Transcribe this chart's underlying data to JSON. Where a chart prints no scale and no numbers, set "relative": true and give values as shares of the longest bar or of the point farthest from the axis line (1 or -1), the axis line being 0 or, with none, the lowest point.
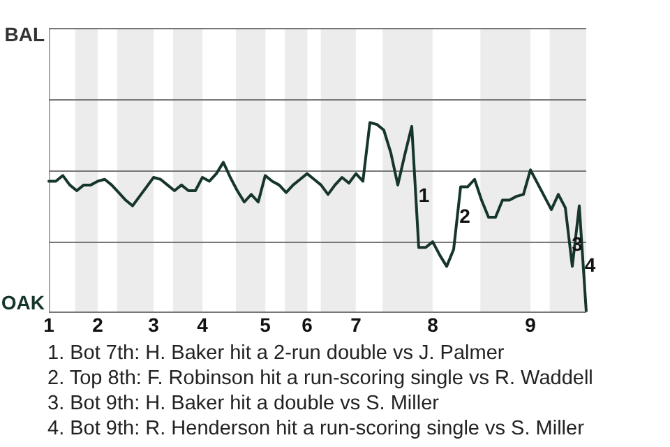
{
  "chart_data": {
    "type": "line",
    "relative": true,
    "categories": [
      "1",
      null,
      null,
      null,
      null,
      null,
      null,
      "2",
      null,
      null,
      null,
      null,
      null,
      null,
      null,
      "3",
      null,
      null,
      null,
      null,
      null,
      null,
      "4",
      null,
      null,
      null,
      null,
      null,
      null,
      null,
      null,
      "5",
      null,
      null,
      null,
      null,
      null,
      "6",
      null,
      null,
      null,
      null,
      null,
      null,
      "7",
      null,
      null,
      null,
      null,
      null,
      null,
      null,
      null,
      null,
      null,
      "8",
      null,
      null,
      null,
      null,
      null,
      null,
      null,
      null,
      null,
      null,
      null,
      null,
      null,
      "9",
      null,
      null,
      null,
      null,
      null,
      null,
      null,
      null
    ],
    "series": [
      {
        "color": "#16352c",
        "values": [
          0.69,
          0.69,
          0.72,
          0.67,
          0.64,
          0.67,
          0.67,
          0.69,
          0.7,
          0.67,
          0.63,
          0.59,
          0.56,
          0.61,
          0.66,
          0.71,
          0.7,
          0.67,
          0.64,
          0.67,
          0.64,
          0.64,
          0.71,
          0.69,
          0.73,
          0.79,
          0.71,
          0.64,
          0.58,
          0.62,
          0.58,
          0.72,
          0.69,
          0.67,
          0.63,
          0.67,
          0.7,
          0.73,
          0.7,
          0.67,
          0.62,
          0.67,
          0.71,
          0.68,
          0.73,
          0.69,
          1,
          0.99,
          0.96,
          0.84,
          0.67,
          0.83,
          0.98,
          0.34,
          0.34,
          0.37,
          0.3,
          0.24,
          0.33,
          0.66,
          0.66,
          0.7,
          0.59,
          0.5,
          0.5,
          0.59,
          0.59,
          0.61,
          0.62,
          0.75,
          0.68,
          0.61,
          0.54,
          0.62,
          0.55,
          0.24,
          0.56,
          0
        ]
      }
    ],
    "legend": false,
    "marker": "none",
    "line_style": "solid",
    "ref_lines": [
      {
        "axis": "y",
        "value": 1.5,
        "label": "BAL",
        "color": "#777777"
      },
      {
        "axis": "y",
        "value": 1.12,
        "color": "#777777"
      },
      {
        "axis": "y",
        "value": 0.75,
        "color": "#777777"
      },
      {
        "axis": "y",
        "value": 0.37,
        "color": "#777777"
      },
      {
        "axis": "y",
        "value": 0,
        "label": "OAK",
        "color": "#777777"
      }
    ],
    "annotations": [
      {
        "text": "1",
        "y": 0.61
      },
      {
        "text": "2",
        "y": 0.5
      },
      {
        "text": "3",
        "y": 0.35
      },
      {
        "text": "4",
        "y": 0.24
      },
      "1. Bot 7th: H. Baker hit a 2-run double vs J. Palmer",
      "2. Top 8th: F. Robinson hit a run-scoring single vs R. Waddell",
      "3. Bot 9th: H. Baker hit a double vs S. Miller",
      "4. Bot 9th: R. Henderson hit a run-scoring single vs S. Miller"
    ]
  }
}
